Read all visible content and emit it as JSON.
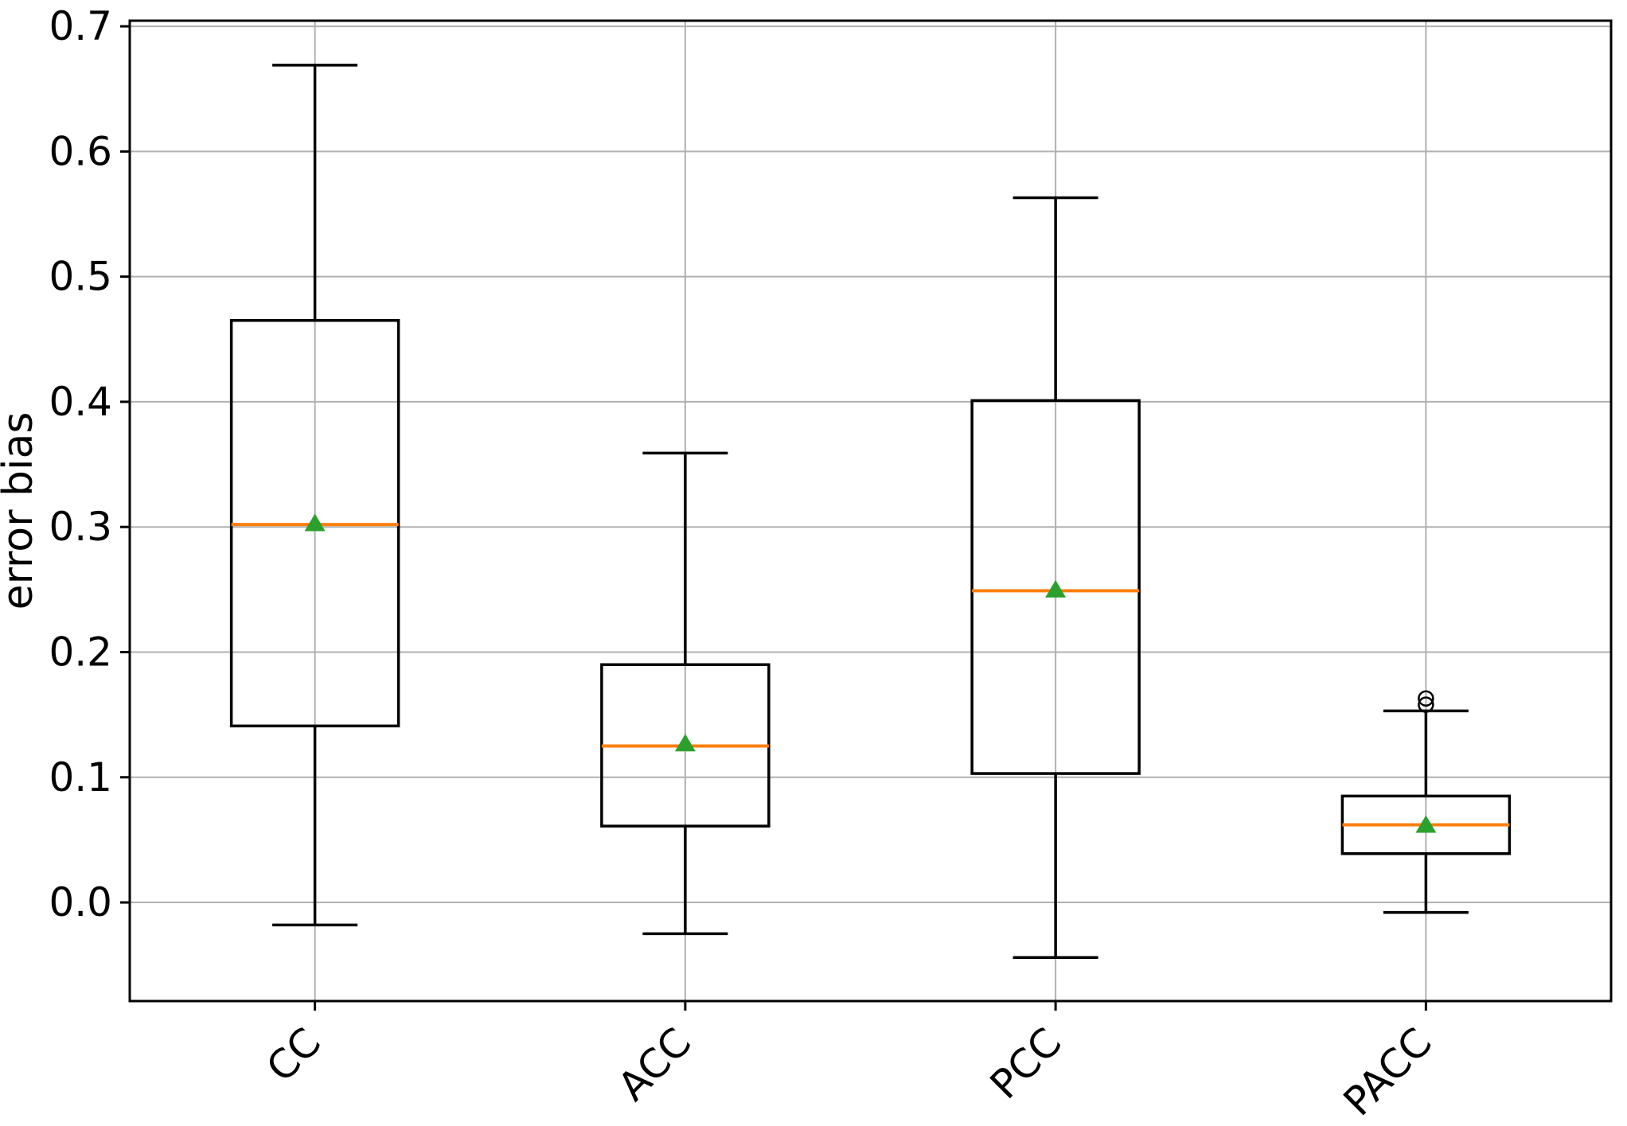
{
  "chart_data": {
    "type": "box",
    "title": "",
    "xlabel": "",
    "ylabel": "error bias",
    "categories": [
      "CC",
      "ACC",
      "PCC",
      "PACC"
    ],
    "yticks": [
      0.0,
      0.1,
      0.2,
      0.3,
      0.4,
      0.5,
      0.6,
      0.7
    ],
    "ytick_labels": [
      "0.0",
      "0.1",
      "0.2",
      "0.3",
      "0.4",
      "0.5",
      "0.6",
      "0.7"
    ],
    "ylim": [
      -0.0788,
      0.7045
    ],
    "grid": true,
    "xtick_rotation": 45,
    "legend": "none",
    "series": [
      {
        "label": "CC",
        "whislo": -0.018,
        "q1": 0.141,
        "med": 0.302,
        "mean": 0.303,
        "q3": 0.465,
        "whishi": 0.669,
        "fliers": []
      },
      {
        "label": "ACC",
        "whislo": -0.025,
        "q1": 0.061,
        "med": 0.125,
        "mean": 0.127,
        "q3": 0.19,
        "whishi": 0.359,
        "fliers": []
      },
      {
        "label": "PCC",
        "whislo": -0.044,
        "q1": 0.103,
        "med": 0.249,
        "mean": 0.25,
        "q3": 0.401,
        "whishi": 0.563,
        "fliers": []
      },
      {
        "label": "PACC",
        "whislo": -0.008,
        "q1": 0.039,
        "med": 0.062,
        "mean": 0.062,
        "q3": 0.085,
        "whishi": 0.153,
        "fliers": [
          0.158,
          0.163
        ]
      }
    ],
    "colors": {
      "median": "#ff7f0e",
      "mean": "#2ca02c",
      "box_stroke": "#000000",
      "whisker": "#000000",
      "outlier_stroke": "#000000",
      "grid": "#b0b0b0",
      "spine": "#000000",
      "background": "#ffffff"
    }
  }
}
